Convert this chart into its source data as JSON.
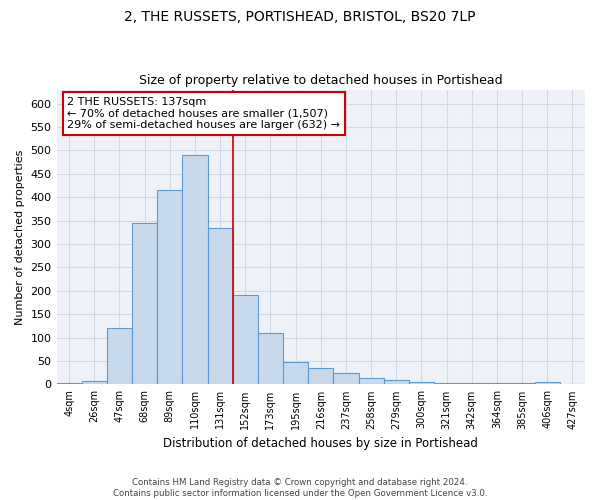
{
  "title_line1": "2, THE RUSSETS, PORTISHEAD, BRISTOL, BS20 7LP",
  "title_line2": "Size of property relative to detached houses in Portishead",
  "xlabel": "Distribution of detached houses by size in Portishead",
  "ylabel": "Number of detached properties",
  "footer_line1": "Contains HM Land Registry data © Crown copyright and database right 2024.",
  "footer_line2": "Contains public sector information licensed under the Open Government Licence v3.0.",
  "bar_labels": [
    "4sqm",
    "26sqm",
    "47sqm",
    "68sqm",
    "89sqm",
    "110sqm",
    "131sqm",
    "152sqm",
    "173sqm",
    "195sqm",
    "216sqm",
    "237sqm",
    "258sqm",
    "279sqm",
    "300sqm",
    "321sqm",
    "342sqm",
    "364sqm",
    "385sqm",
    "406sqm",
    "427sqm"
  ],
  "bar_values": [
    4,
    7,
    120,
    345,
    415,
    490,
    335,
    192,
    110,
    48,
    35,
    25,
    14,
    9,
    5,
    2,
    4,
    2,
    2,
    6,
    0
  ],
  "bar_color": "#c9d9ec",
  "bar_edge_color": "#5b9bd5",
  "property_line_x": 6.5,
  "property_sqm": 137,
  "annotation_text_line1": "2 THE RUSSETS: 137sqm",
  "annotation_text_line2": "← 70% of detached houses are smaller (1,507)",
  "annotation_text_line3": "29% of semi-detached houses are larger (632) →",
  "annotation_box_color": "#ffffff",
  "annotation_border_color": "#cc0000",
  "vline_color": "#cc0000",
  "grid_color": "#d0d8e8",
  "background_color": "#eef2f8",
  "ylim": [
    0,
    630
  ],
  "yticks": [
    0,
    50,
    100,
    150,
    200,
    250,
    300,
    350,
    400,
    450,
    500,
    550,
    600
  ]
}
